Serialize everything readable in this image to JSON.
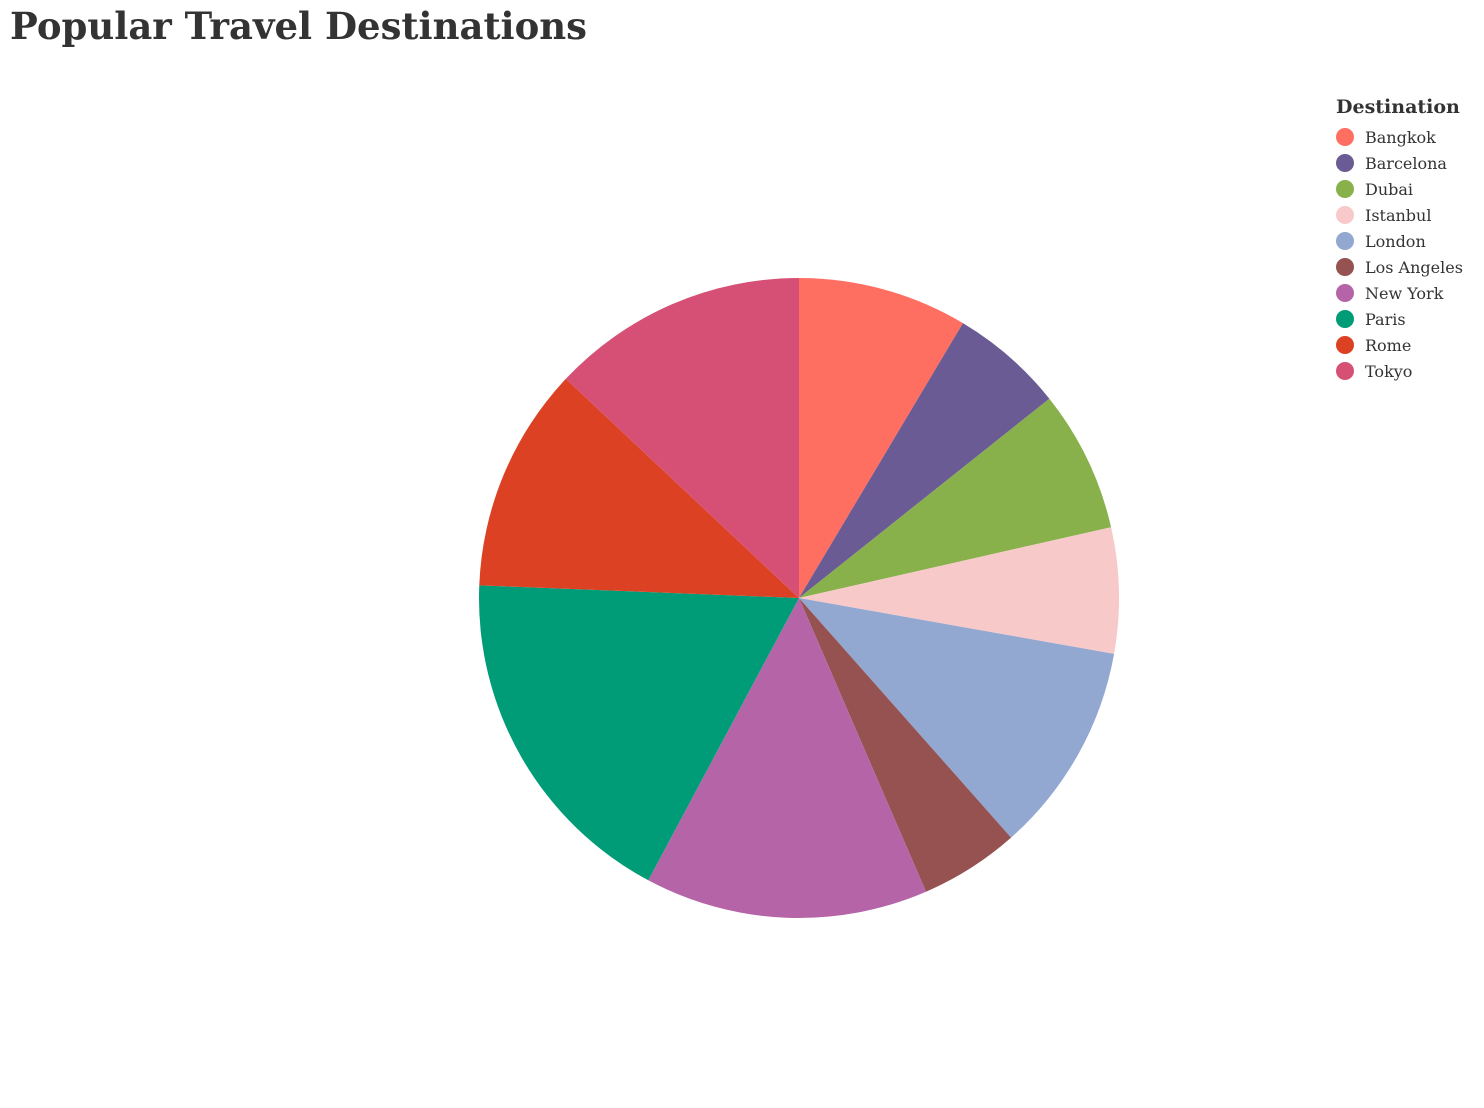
{
  "chart_data": {
    "type": "pie",
    "title": "Popular Travel Destinations",
    "legend_title": "Destination",
    "legend_position": "top-right",
    "categories": [
      "Bangkok",
      "Barcelona",
      "Dubai",
      "Istanbul",
      "London",
      "Los Angeles",
      "New York",
      "Paris",
      "Rome",
      "Tokyo"
    ],
    "values": [
      8.5,
      5.7,
      7.1,
      6.3,
      10.6,
      5.0,
      14.2,
      17.7,
      11.3,
      12.9
    ],
    "colors": [
      "#ff6f61",
      "#6b5b95",
      "#88b04b",
      "#f7cac9",
      "#92a8d1",
      "#955251",
      "#b565a7",
      "#009b77",
      "#dd4124",
      "#d65076"
    ]
  }
}
